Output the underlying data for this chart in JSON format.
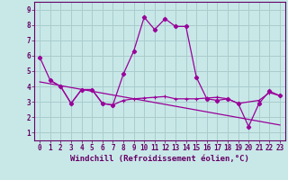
{
  "xlabel": "Windchill (Refroidissement éolien,°C)",
  "background_color": "#c8e8e8",
  "grid_color": "#aacccc",
  "line_color": "#990099",
  "xlim": [
    -0.5,
    23.5
  ],
  "ylim": [
    0.5,
    9.5
  ],
  "xticks": [
    0,
    1,
    2,
    3,
    4,
    5,
    6,
    7,
    8,
    9,
    10,
    11,
    12,
    13,
    14,
    15,
    16,
    17,
    18,
    19,
    20,
    21,
    22,
    23
  ],
  "yticks": [
    1,
    2,
    3,
    4,
    5,
    6,
    7,
    8,
    9
  ],
  "series1_x": [
    0,
    1,
    2,
    3,
    4,
    5,
    6,
    7,
    8,
    9,
    10,
    11,
    12,
    13,
    14,
    15,
    16,
    17,
    18,
    19,
    20,
    21,
    22,
    23
  ],
  "series1_y": [
    5.9,
    4.4,
    4.0,
    2.9,
    3.8,
    3.8,
    2.9,
    2.8,
    4.8,
    6.3,
    8.5,
    7.7,
    8.4,
    7.9,
    7.9,
    4.6,
    3.2,
    3.1,
    3.2,
    2.9,
    1.4,
    2.9,
    3.7,
    3.4
  ],
  "series2_x": [
    1,
    2,
    3,
    4,
    5,
    6,
    7,
    8,
    9,
    10,
    11,
    12,
    13,
    14,
    15,
    16,
    17,
    18,
    19,
    21,
    22,
    23
  ],
  "series2_y": [
    4.4,
    4.0,
    2.9,
    3.8,
    3.8,
    2.9,
    2.8,
    3.1,
    3.2,
    3.25,
    3.3,
    3.35,
    3.2,
    3.2,
    3.2,
    3.25,
    3.3,
    3.2,
    2.9,
    3.1,
    3.6,
    3.4
  ],
  "trend_x": [
    0,
    23
  ],
  "trend_y": [
    4.3,
    1.5
  ],
  "font_family": "monospace",
  "tick_fontsize": 5.5,
  "label_fontsize": 6.5
}
